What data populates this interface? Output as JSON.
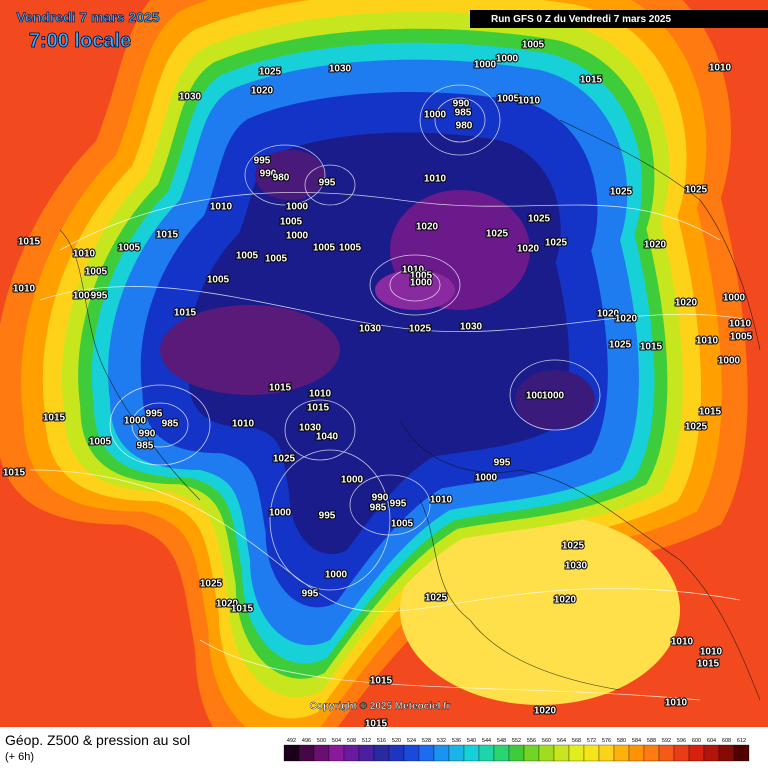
{
  "header": {
    "date": "Vendredi 7 mars 2025",
    "time": "7:00 locale",
    "run": "Run GFS 0 Z du Vendredi 7 mars 2025"
  },
  "footer": {
    "title": "Géop. Z500 & pression au sol",
    "subtitle": "(+ 6h)",
    "copyright": "Copyright © 2025 Meteociel.fr"
  },
  "legend": {
    "levels": [
      492,
      496,
      500,
      504,
      508,
      512,
      516,
      520,
      524,
      528,
      532,
      536,
      540,
      544,
      548,
      552,
      556,
      560,
      564,
      568,
      572,
      576,
      580,
      584,
      588,
      592,
      596,
      600,
      604,
      608,
      612
    ]
  },
  "pressure_labels": [
    1005,
    1000,
    1000,
    1015,
    1010,
    1025,
    1030,
    1030,
    1020,
    990,
    985,
    1000,
    980,
    1005,
    1010,
    995,
    990,
    980,
    995,
    1010,
    1025,
    1025,
    1010,
    1000,
    1005,
    1000,
    1015,
    1010,
    1005,
    1015,
    1020,
    1025,
    1025,
    1025,
    1020,
    1020,
    1005,
    1005,
    1005,
    1005,
    1005,
    1010,
    1005,
    1000,
    1010,
    1000,
    995,
    1005,
    1020,
    1000,
    1015,
    1020,
    1020,
    1030,
    1025,
    1030,
    1010,
    1005,
    1010,
    1025,
    1015,
    1000,
    1015,
    1010,
    1005,
    1000,
    1015,
    995,
    985,
    1000,
    1010,
    1015,
    990,
    985,
    1005,
    1030,
    1040,
    1015,
    1025,
    1015,
    1025,
    995,
    1000,
    1000,
    990,
    985,
    995,
    1010,
    1000,
    995,
    1005,
    1025,
    1030,
    1000,
    1025,
    995,
    1025,
    1020,
    1020,
    1015,
    1010,
    1010,
    1015,
    1015,
    1010,
    1020,
    1015
  ]
}
